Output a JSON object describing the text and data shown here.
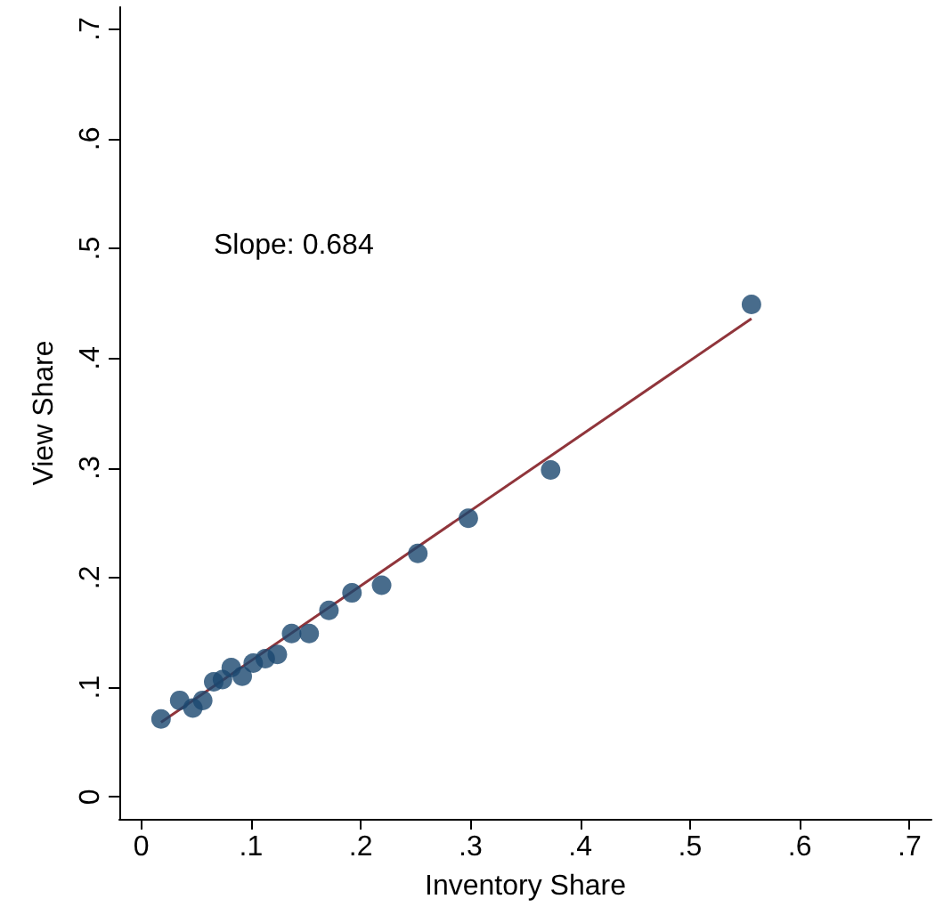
{
  "chart_data": {
    "type": "scatter",
    "xlabel": "Inventory Share",
    "ylabel": "View Share",
    "annotations": [
      "Slope: 0.684"
    ],
    "xlim": [
      -0.02,
      0.72
    ],
    "ylim": [
      -0.02,
      0.72
    ],
    "xticks": [
      0,
      {
        "value": 0.1,
        "label": ".1"
      },
      {
        "value": 0.2,
        "label": ".2"
      },
      {
        "value": 0.3,
        "label": ".3"
      },
      {
        "value": 0.4,
        "label": ".4"
      },
      {
        "value": 0.5,
        "label": ".5"
      },
      {
        "value": 0.6,
        "label": ".6"
      },
      {
        "value": 0.7,
        "label": ".7"
      }
    ],
    "yticks": [
      0,
      {
        "value": 0.1,
        "label": ".1"
      },
      {
        "value": 0.2,
        "label": ".2"
      },
      {
        "value": 0.3,
        "label": ".3"
      },
      {
        "value": 0.4,
        "label": ".4"
      },
      {
        "value": 0.5,
        "label": ".5"
      },
      {
        "value": 0.6,
        "label": ".6"
      },
      {
        "value": 0.7,
        "label": ".7"
      }
    ],
    "grid": false,
    "marker": "circle",
    "series": [
      {
        "type": "scatter",
        "color": "#1a476f",
        "x": [
          0.018,
          0.035,
          0.047,
          0.056,
          0.066,
          0.074,
          0.082,
          0.092,
          0.102,
          0.113,
          0.124,
          0.137,
          0.153,
          0.171,
          0.192,
          0.219,
          0.252,
          0.298,
          0.373,
          0.556
        ],
        "values": [
          0.071,
          0.088,
          0.081,
          0.088,
          0.105,
          0.107,
          0.118,
          0.11,
          0.122,
          0.126,
          0.13,
          0.149,
          0.149,
          0.17,
          0.186,
          0.193,
          0.222,
          0.254,
          0.298,
          0.449
        ]
      },
      {
        "type": "line",
        "color": "#90353b",
        "marker": "none",
        "line_style": "solid",
        "x": [
          0.018,
          0.556
        ],
        "values": [
          0.068,
          0.436
        ]
      }
    ]
  }
}
